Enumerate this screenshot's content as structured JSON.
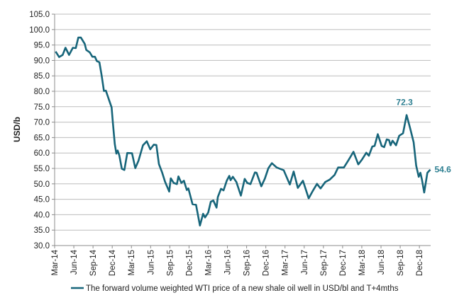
{
  "chart_data": {
    "type": "line",
    "title": "",
    "xlabel": "",
    "ylabel": "USD/b",
    "ylim": [
      30,
      105
    ],
    "yticks": [
      "30.0",
      "35.0",
      "40.0",
      "45.0",
      "50.0",
      "55.0",
      "60.0",
      "65.0",
      "70.0",
      "75.0",
      "80.0",
      "85.0",
      "90.0",
      "95.0",
      "100.0",
      "105.0"
    ],
    "x_unit": "months since Mar-14",
    "xticks": [
      "Mar-14",
      "Jun-14",
      "Sep-14",
      "Dec-14",
      "Mar-15",
      "Jun-15",
      "Sep-15",
      "Dec-15",
      "Mar-16",
      "Jun-16",
      "Sep-16",
      "Dec-16",
      "Mar-17",
      "Jun-17",
      "Sep-17",
      "Dec-17",
      "Mar-18",
      "Jun-18",
      "Sep-18",
      "Dec-18"
    ],
    "grid": true,
    "legend_position": "bottom",
    "colors": {
      "line": "#17657a",
      "label": "#2d7f91",
      "grid": "#bdbdbd",
      "axis": "#8c8c8c"
    },
    "annotations": [
      {
        "text": "72.3",
        "x": 55.0,
        "y": 72.3
      },
      {
        "text": "54.6",
        "x": 58.7,
        "y": 54.6
      }
    ],
    "series": [
      {
        "name": "The forward volume weighted WTI price of a new shale oil well in USD/bl and T+4mths",
        "x": [
          0.15,
          0.7,
          1.25,
          1.7,
          2.25,
          2.85,
          3.3,
          3.7,
          4.1,
          4.7,
          4.95,
          5.5,
          5.9,
          6.3,
          6.6,
          7.0,
          7.35,
          7.7,
          8.0,
          8.65,
          8.9,
          9.1,
          9.4,
          9.65,
          9.85,
          10.1,
          10.5,
          10.9,
          11.35,
          12.1,
          12.6,
          13.1,
          13.8,
          14.4,
          14.95,
          15.5,
          15.9,
          16.3,
          16.8,
          17.25,
          17.9,
          18.15,
          18.6,
          19.1,
          19.35,
          19.8,
          20.2,
          20.65,
          20.9,
          21.55,
          22.1,
          22.7,
          23.2,
          23.5,
          24.0,
          24.4,
          24.8,
          25.3,
          25.5,
          26.0,
          26.4,
          26.9,
          27.3,
          27.5,
          27.85,
          28.4,
          29.1,
          29.7,
          30.1,
          30.6,
          31.3,
          31.55,
          32.3,
          32.85,
          33.4,
          33.95,
          34.7,
          35.8,
          36.75,
          37.35,
          38.0,
          38.8,
          39.7,
          40.25,
          41.0,
          41.55,
          42.3,
          43.0,
          43.75,
          44.3,
          45.2,
          45.95,
          46.7,
          47.45,
          48.0,
          48.7,
          49.1,
          49.65,
          50.0,
          50.5,
          51.1,
          51.5,
          51.9,
          52.25,
          52.5,
          52.8,
          53.35,
          53.85,
          54.45,
          55.0,
          55.55,
          56.1,
          56.5,
          56.9,
          57.15,
          57.4,
          57.75,
          58.25,
          58.7
        ],
        "y": [
          92.9,
          91.1,
          91.8,
          94.1,
          91.8,
          94.1,
          94.0,
          97.4,
          97.4,
          95.4,
          93.4,
          92.6,
          91.2,
          91.2,
          89.8,
          89.4,
          85.1,
          80.1,
          80.2,
          76.3,
          74.8,
          69.8,
          62.9,
          59.8,
          60.8,
          59.3,
          54.9,
          54.5,
          60.0,
          59.9,
          55.1,
          57.5,
          62.5,
          63.8,
          61.2,
          62.7,
          62.6,
          56.4,
          53.7,
          50.7,
          47.5,
          51.8,
          50.3,
          49.9,
          52.4,
          50.3,
          51.0,
          48.0,
          48.5,
          43.4,
          43.2,
          36.5,
          40.3,
          39.1,
          40.7,
          44.2,
          44.6,
          42.3,
          45.7,
          48.4,
          47.9,
          51.0,
          52.6,
          51.2,
          52.3,
          50.6,
          46.2,
          51.6,
          50.3,
          49.9,
          53.7,
          53.6,
          49.2,
          51.7,
          55.1,
          56.7,
          55.3,
          54.4,
          49.8,
          54.0,
          48.7,
          51.0,
          45.3,
          47.4,
          50.0,
          48.5,
          50.6,
          51.4,
          52.9,
          55.3,
          55.3,
          57.8,
          60.4,
          56.3,
          57.8,
          60.1,
          59.1,
          62.1,
          62.3,
          66.1,
          62.3,
          61.9,
          64.4,
          64.2,
          62.5,
          64.0,
          62.5,
          65.6,
          66.4,
          72.3,
          68.0,
          63.5,
          55.9,
          52.3,
          53.6,
          51.4,
          47.2,
          53.6,
          54.6
        ]
      }
    ]
  }
}
